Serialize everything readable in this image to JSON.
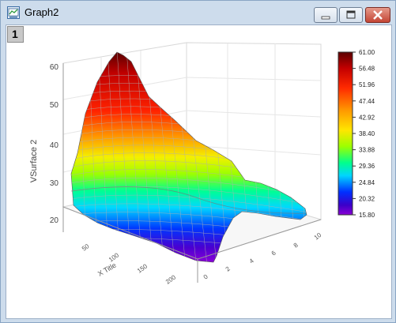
{
  "window": {
    "title": "Graph2",
    "layer_tab": "1",
    "icon": "graph-window-icon",
    "buttons": [
      "minimize-icon",
      "maximize-icon",
      "close-icon"
    ]
  },
  "chart_data": {
    "type": "surface3d",
    "zlabel": "VSurface 2",
    "xlabel": "X Title",
    "z_ticks": [
      "20",
      "30",
      "40",
      "50",
      "60"
    ],
    "x_ticks": [
      "50",
      "100",
      "150",
      "200"
    ],
    "y_ticks": [
      "0",
      "2",
      "4",
      "6",
      "8",
      "10"
    ],
    "colorbar": {
      "labels": [
        "61.00",
        "56.48",
        "51.96",
        "47.44",
        "42.92",
        "38.40",
        "33.88",
        "29.36",
        "24.84",
        "20.32",
        "15.80"
      ],
      "min": 15.8,
      "max": 61.0,
      "colors": [
        "#5a0000",
        "#c40000",
        "#ff2a00",
        "#ff9a00",
        "#ffe600",
        "#9cff00",
        "#00ff8c",
        "#00d4ff",
        "#0030ff",
        "#3b00c8",
        "#8a00d4"
      ]
    }
  }
}
